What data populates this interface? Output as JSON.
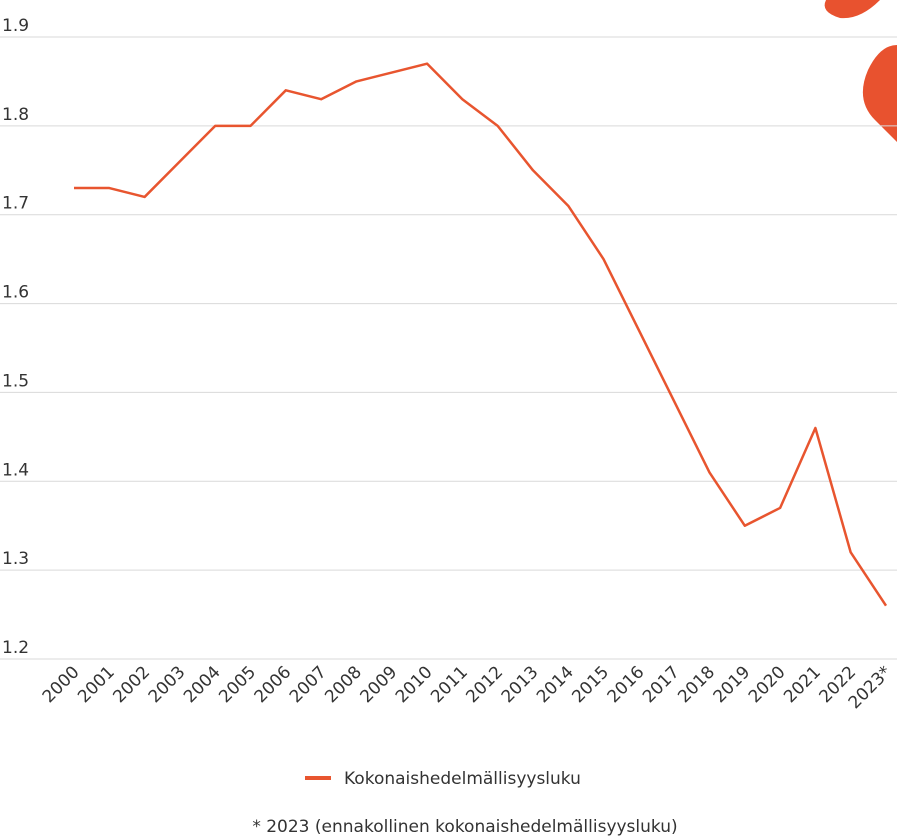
{
  "chart_data": {
    "type": "line",
    "categories": [
      "2000",
      "2001",
      "2002",
      "2003",
      "2004",
      "2005",
      "2006",
      "2007",
      "2008",
      "2009",
      "2010",
      "2011",
      "2012",
      "2013",
      "2014",
      "2015",
      "2016",
      "2017",
      "2018",
      "2019",
      "2020",
      "2021",
      "2022",
      "2023*"
    ],
    "series": [
      {
        "name": "Kokonaishedelmällisyysluku",
        "color": "#e8552f",
        "values": [
          1.73,
          1.73,
          1.72,
          1.76,
          1.8,
          1.8,
          1.84,
          1.83,
          1.85,
          1.86,
          1.87,
          1.83,
          1.8,
          1.75,
          1.71,
          1.65,
          1.57,
          1.49,
          1.41,
          1.35,
          1.37,
          1.46,
          1.32,
          1.26
        ]
      }
    ],
    "ylim": [
      1.2,
      1.9
    ],
    "yticks": [
      1.2,
      1.3,
      1.4,
      1.5,
      1.6,
      1.7,
      1.8,
      1.9
    ],
    "grid": true,
    "legend": "bottom",
    "annotations": [
      "* 2023 (ennakollinen kokonaishedelmällisyysluku)"
    ]
  }
}
